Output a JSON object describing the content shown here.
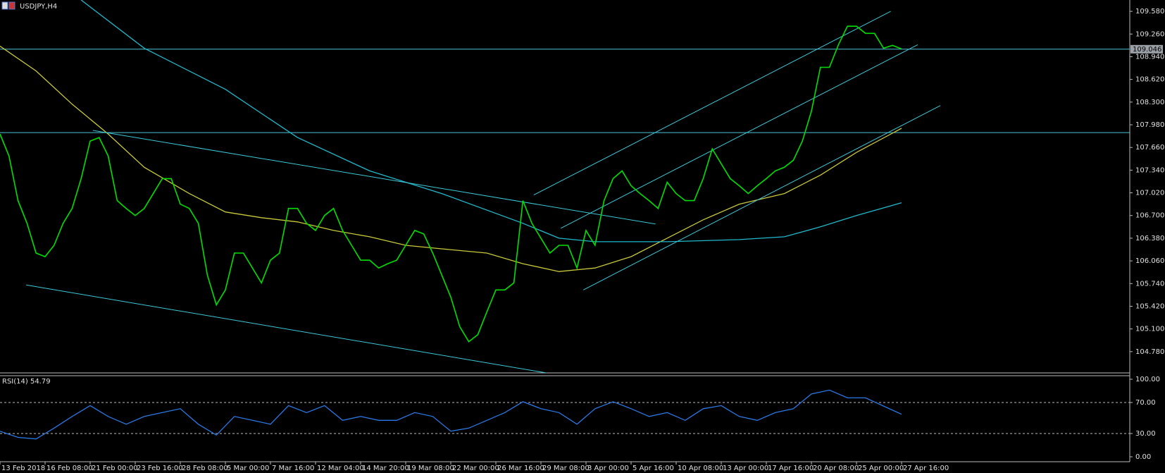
{
  "chart_data": {
    "type": "line",
    "title": "USDJPY,H4",
    "color": "#00e000",
    "categories": [
      "13 Feb 2018",
      null,
      null,
      null,
      null,
      "16 Feb 08:00",
      null,
      null,
      null,
      null,
      "21 Feb 00:00",
      null,
      null,
      null,
      null,
      "23 Feb 16:00",
      null,
      null,
      null,
      null,
      "28 Feb 08:00",
      null,
      null,
      null,
      null,
      "5 Mar 00:00",
      null,
      null,
      null,
      null,
      "7 Mar 16:00",
      null,
      null,
      null,
      null,
      "12 Mar 04:00",
      null,
      null,
      null,
      null,
      "14 Mar 20:00",
      null,
      null,
      null,
      null,
      "19 Mar 08:00",
      null,
      null,
      null,
      null,
      "22 Mar 00:00",
      null,
      null,
      null,
      null,
      "26 Mar 16:00",
      null,
      null,
      null,
      null,
      "29 Mar 08:00",
      null,
      null,
      null,
      null,
      "3 Apr 00:00",
      null,
      null,
      null,
      null,
      "5 Apr 16:00",
      null,
      null,
      null,
      null,
      "10 Apr 08:00",
      null,
      null,
      null,
      null,
      "13 Apr 00:00",
      null,
      null,
      null,
      null,
      "17 Apr 16:00",
      null,
      null,
      null,
      null,
      "20 Apr 08:00",
      null,
      null,
      null,
      null,
      "25 Apr 00:00",
      null,
      null,
      null,
      null,
      "27 Apr 16:00"
    ],
    "values": [
      107.85,
      107.54,
      106.91,
      106.59,
      106.17,
      106.12,
      106.28,
      106.59,
      106.8,
      107.22,
      107.75,
      107.8,
      107.54,
      106.91,
      106.8,
      106.7,
      106.8,
      107.01,
      107.22,
      107.22,
      106.86,
      106.8,
      106.59,
      105.86,
      105.44,
      105.65,
      106.17,
      106.17,
      105.96,
      105.75,
      106.07,
      106.17,
      106.8,
      106.8,
      106.59,
      106.49,
      106.7,
      106.8,
      106.49,
      106.28,
      106.07,
      106.07,
      105.96,
      106.02,
      106.07,
      106.28,
      106.49,
      106.44,
      106.17,
      105.86,
      105.55,
      105.13,
      104.92,
      105.02,
      105.34,
      105.65,
      105.65,
      105.75,
      106.91,
      106.59,
      106.38,
      106.17,
      106.28,
      106.28,
      105.96,
      106.49,
      106.28,
      106.91,
      107.22,
      107.33,
      107.12,
      107.01,
      106.91,
      106.8,
      107.17,
      107.01,
      106.91,
      106.91,
      107.22,
      107.64,
      107.43,
      107.22,
      107.12,
      107.01,
      107.12,
      107.22,
      107.33,
      107.38,
      107.48,
      107.75,
      108.17,
      108.79,
      108.79,
      109.11,
      109.37,
      109.37,
      109.27,
      109.27,
      109.06,
      109.1,
      109.05
    ],
    "ylim": [
      104.48,
      109.74
    ],
    "yticks": [
      {
        "value": 104.78,
        "label": "104.780"
      },
      {
        "value": 105.1,
        "label": "105.100"
      },
      {
        "value": 105.42,
        "label": "105.420"
      },
      {
        "value": 105.74,
        "label": "105.740"
      },
      {
        "value": 106.06,
        "label": "106.060"
      },
      {
        "value": 106.38,
        "label": "106.380"
      },
      {
        "value": 106.7,
        "label": "106.700"
      },
      {
        "value": 107.02,
        "label": "107.020"
      },
      {
        "value": 107.34,
        "label": "107.340"
      },
      {
        "value": 107.66,
        "label": "107.660"
      },
      {
        "value": 107.98,
        "label": "107.980"
      },
      {
        "value": 108.3,
        "label": "108.300"
      },
      {
        "value": 108.62,
        "label": "108.620"
      },
      {
        "value": 108.94,
        "label": "108.940"
      },
      {
        "value": 109.26,
        "label": "109.260"
      },
      {
        "value": 109.58,
        "label": "109.580"
      }
    ],
    "hlines": [
      109.046,
      107.87
    ],
    "hline_color": "#4cc3d3",
    "moving_averages": [
      {
        "color": "#c8c83a",
        "x": [
          0,
          4,
          8,
          12,
          16,
          21,
          25,
          29,
          33,
          37,
          41,
          45,
          49,
          54,
          58,
          62,
          66,
          70,
          74,
          78,
          82,
          87,
          91,
          95,
          100
        ],
        "values": [
          109.09,
          108.74,
          108.27,
          107.85,
          107.38,
          107.01,
          106.75,
          106.67,
          106.61,
          106.49,
          106.4,
          106.28,
          106.23,
          106.17,
          106.02,
          105.91,
          105.96,
          106.12,
          106.38,
          106.64,
          106.86,
          107.01,
          107.27,
          107.59,
          107.93
        ]
      },
      {
        "color": "#1fb8cc",
        "x": [
          9,
          16,
          25,
          33,
          41,
          49,
          58,
          62,
          66,
          74,
          82,
          87,
          91,
          95,
          100
        ],
        "values": [
          109.74,
          109.06,
          108.48,
          107.8,
          107.33,
          107.01,
          106.59,
          106.38,
          106.33,
          106.33,
          106.36,
          106.4,
          106.54,
          106.7,
          106.88
        ]
      }
    ],
    "trendlines": [
      {
        "color": "#3cc8d8",
        "x": [
          10.3,
          72.7
        ],
        "values": [
          107.9,
          106.58
        ]
      },
      {
        "color": "#3cc8d8",
        "x": [
          2.9,
          60.6
        ],
        "values": [
          105.72,
          104.48
        ]
      },
      {
        "color": "#3cc8d8",
        "x": [
          59.2,
          98.8
        ],
        "values": [
          106.99,
          109.58
        ]
      },
      {
        "color": "#3cc8d8",
        "x": [
          62.2,
          101.8
        ],
        "values": [
          106.52,
          109.11
        ]
      },
      {
        "color": "#3cc8d8",
        "x": [
          64.7,
          104.3
        ],
        "values": [
          105.65,
          108.25
        ]
      }
    ],
    "indicator": {
      "label": "RSI(14) 54.79",
      "color": "#2a78e4",
      "ylim": [
        0,
        100
      ],
      "yticks": [
        {
          "value": 100,
          "label": "100.00"
        },
        {
          "value": 70,
          "label": "70.00"
        },
        {
          "value": 30,
          "label": "30.00"
        },
        {
          "value": 0,
          "label": "0.00"
        }
      ],
      "levels": [
        70,
        30
      ],
      "x": [
        0,
        2,
        4,
        6,
        8,
        10,
        12,
        14,
        16,
        18,
        20,
        22,
        24,
        26,
        28,
        30,
        32,
        34,
        36,
        38,
        40,
        42,
        44,
        46,
        48,
        50,
        52,
        54,
        56,
        58,
        60,
        62,
        64,
        66,
        68,
        70,
        72,
        74,
        76,
        78,
        80,
        82,
        84,
        86,
        88,
        90,
        92,
        94,
        96,
        100
      ],
      "values": [
        33,
        25,
        23,
        37,
        52,
        66,
        52,
        42,
        52,
        57,
        62,
        42,
        28,
        52,
        47,
        42,
        66,
        57,
        66,
        47,
        52,
        47,
        47,
        57,
        52,
        33,
        37,
        47,
        57,
        71,
        62,
        57,
        42,
        62,
        71,
        62,
        52,
        57,
        47,
        62,
        66,
        52,
        47,
        57,
        62,
        81,
        86,
        76,
        76,
        54.79
      ]
    }
  }
}
